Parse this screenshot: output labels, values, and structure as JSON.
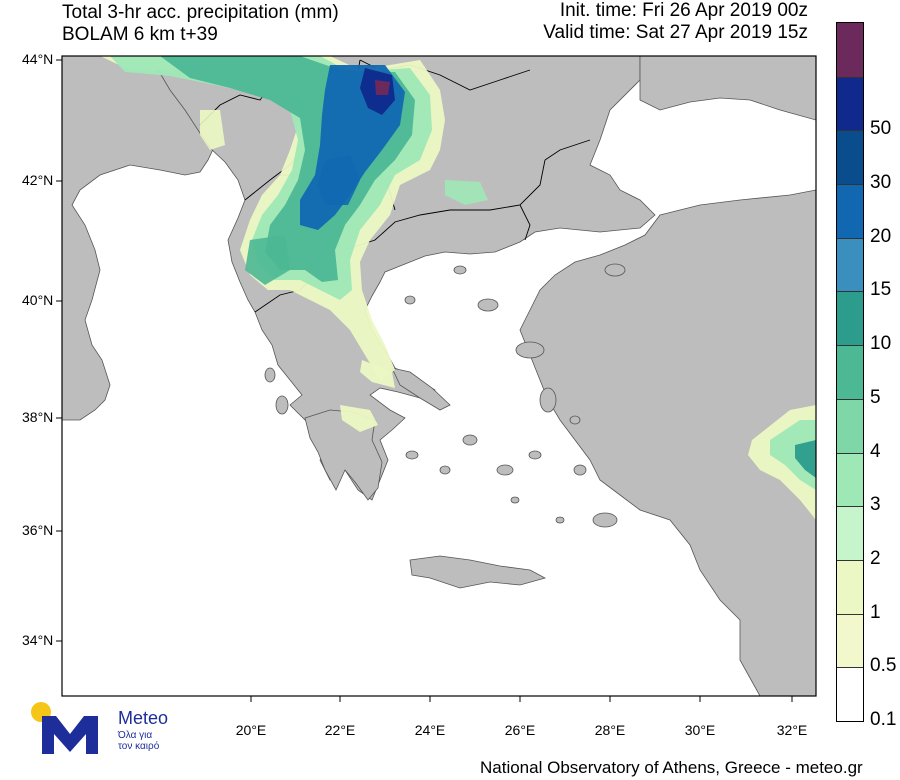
{
  "header": {
    "title_line1": "Total 3-hr acc. precipitation (mm)",
    "title_line2": "BOLAM 6 km t+39",
    "init_time": "Init. time: Fri 26 Apr 2019 00z",
    "valid_time": "Valid time: Sat 27 Apr 2019 15z"
  },
  "map": {
    "lat_labels": [
      "44°N",
      "42°N",
      "40°N",
      "38°N",
      "36°N",
      "34°N"
    ],
    "lon_labels": [
      "20°E",
      "22°E",
      "24°E",
      "26°E",
      "28°E",
      "30°E",
      "32°E"
    ],
    "colors": {
      "land": "#bdbdbd",
      "sea": "#ffffff",
      "border": "#000000"
    }
  },
  "legend": {
    "levels": [
      {
        "label": "",
        "color": "#6b2a5b"
      },
      {
        "label": "50",
        "color": "#0f2a8c"
      },
      {
        "label": "30",
        "color": "#0a4d8c"
      },
      {
        "label": "20",
        "color": "#1168b1"
      },
      {
        "label": "15",
        "color": "#3b8fbf"
      },
      {
        "label": "10",
        "color": "#2c9c8c"
      },
      {
        "label": "5",
        "color": "#4cb894"
      },
      {
        "label": "4",
        "color": "#7fd6a6"
      },
      {
        "label": "3",
        "color": "#9ee8b6"
      },
      {
        "label": "2",
        "color": "#c6f5cc"
      },
      {
        "label": "1",
        "color": "#ecf8c4"
      },
      {
        "label": "0.5",
        "color": "#f2f8cc"
      },
      {
        "label": "0.1",
        "color": "#ffffff"
      }
    ]
  },
  "logo": {
    "name": "Meteo",
    "tagline_line1": "Όλα για",
    "tagline_line2": "τον καιρό",
    "colors": {
      "sun": "#f5c518",
      "letter": "#1d2e9b"
    }
  },
  "footer": {
    "credit": "National Observatory of Athens, Greece - meteo.gr"
  }
}
